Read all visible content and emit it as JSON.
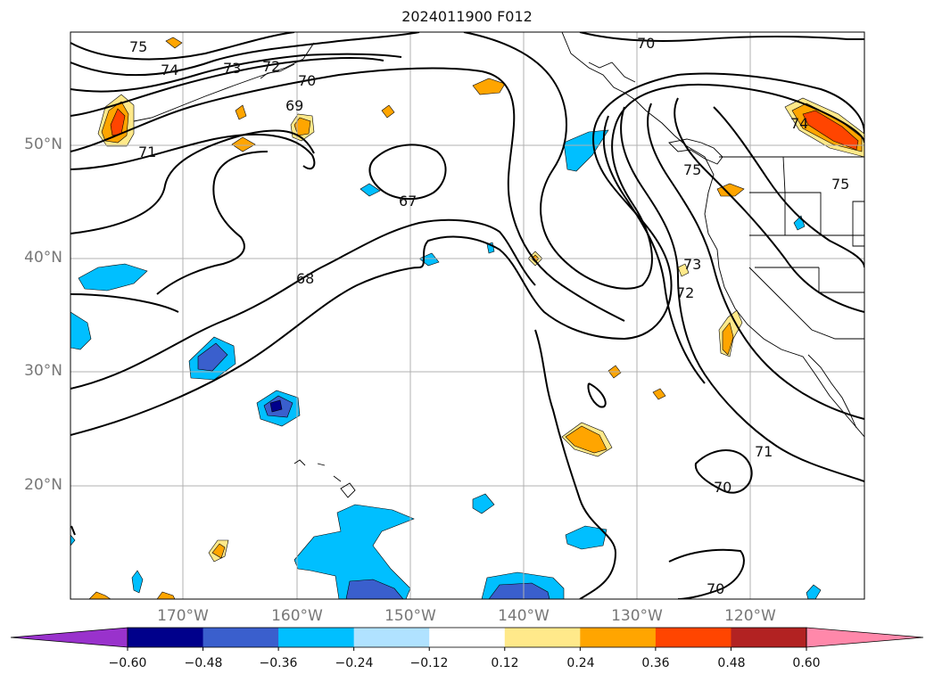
{
  "title": "2024011900 F012",
  "map": {
    "lat_labels": [
      "50°N",
      "40°N",
      "30°N",
      "20°N"
    ],
    "lon_labels": [
      "170°W",
      "160°W",
      "150°W",
      "140°W",
      "130°W",
      "120°W"
    ],
    "contour_labels": [
      "75",
      "74",
      "73",
      "72",
      "70",
      "69",
      "71",
      "67",
      "68",
      "70",
      "74",
      "75",
      "75",
      "73",
      "72",
      "71",
      "70",
      "70"
    ]
  },
  "colorbar": {
    "ticks": [
      "−0.60",
      "−0.48",
      "−0.36",
      "−0.24",
      "−0.12",
      "0.12",
      "0.24",
      "0.36",
      "0.48",
      "0.60"
    ],
    "colors": [
      "#9932cc",
      "#00008b",
      "#3a5fcd",
      "#00bfff",
      "#b0e2ff",
      "#ffffff",
      "#ffe98a",
      "#ffa500",
      "#ff4500",
      "#b22222",
      "#ff88aa"
    ]
  }
}
